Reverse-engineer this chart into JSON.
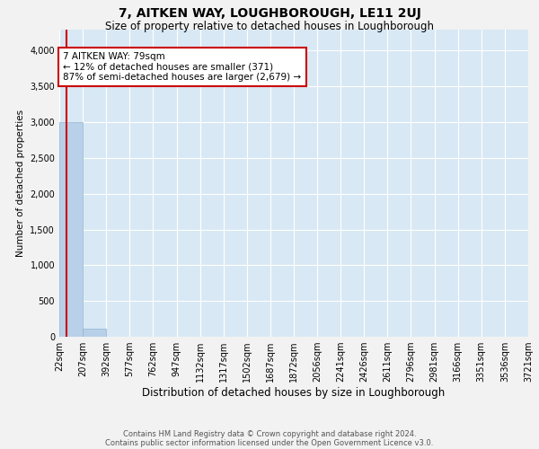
{
  "title": "7, AITKEN WAY, LOUGHBOROUGH, LE11 2UJ",
  "subtitle": "Size of property relative to detached houses in Loughborough",
  "xlabel": "Distribution of detached houses by size in Loughborough",
  "ylabel": "Number of detached properties",
  "footnote1": "Contains HM Land Registry data © Crown copyright and database right 2024.",
  "footnote2": "Contains public sector information licensed under the Open Government Licence v3.0.",
  "property_size": 79,
  "property_line_color": "#cc0000",
  "bar_color": "#b8d0e8",
  "bar_edge_color": "#90b4d0",
  "annotation_line1": "7 AITKEN WAY: 79sqm",
  "annotation_line2": "← 12% of detached houses are smaller (371)",
  "annotation_line3": "87% of semi-detached houses are larger (2,679) →",
  "annotation_box_color": "#ffffff",
  "annotation_box_edge_color": "#cc0000",
  "bin_edges": [
    22,
    207,
    392,
    577,
    762,
    947,
    1132,
    1317,
    1502,
    1687,
    1872,
    2056,
    2241,
    2426,
    2611,
    2796,
    2981,
    3166,
    3351,
    3536,
    3721
  ],
  "bin_labels": [
    "22sqm",
    "207sqm",
    "392sqm",
    "577sqm",
    "762sqm",
    "947sqm",
    "1132sqm",
    "1317sqm",
    "1502sqm",
    "1687sqm",
    "1872sqm",
    "2056sqm",
    "2241sqm",
    "2426sqm",
    "2611sqm",
    "2796sqm",
    "2981sqm",
    "3166sqm",
    "3351sqm",
    "3536sqm",
    "3721sqm"
  ],
  "bar_heights": [
    3000,
    110,
    2,
    1,
    0,
    0,
    0,
    0,
    0,
    0,
    0,
    0,
    0,
    0,
    0,
    0,
    0,
    0,
    0,
    0
  ],
  "ylim": [
    0,
    4300
  ],
  "yticks": [
    0,
    500,
    1000,
    1500,
    2000,
    2500,
    3000,
    3500,
    4000
  ],
  "plot_bg_color": "#d8e8f4",
  "grid_color": "#ffffff",
  "title_fontsize": 10,
  "subtitle_fontsize": 8.5,
  "xlabel_fontsize": 8.5,
  "ylabel_fontsize": 7.5,
  "tick_fontsize": 7,
  "annotation_fontsize": 7.5,
  "footnote_fontsize": 6
}
